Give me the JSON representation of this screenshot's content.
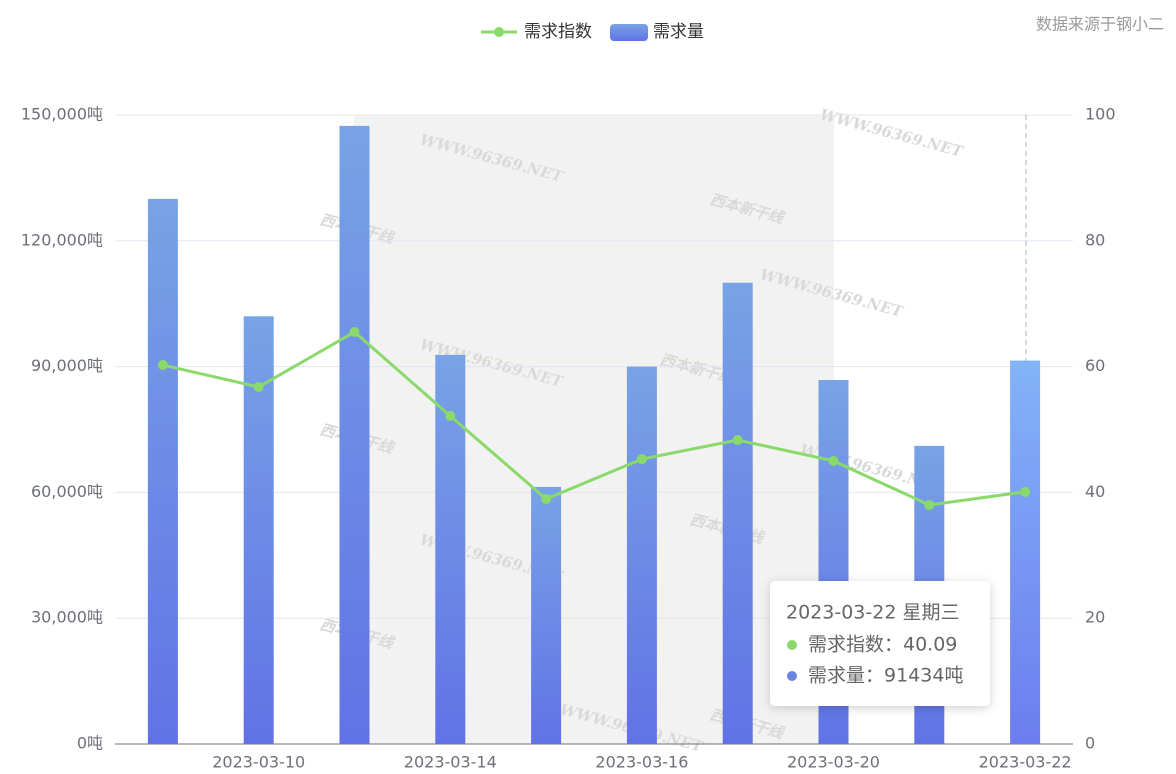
{
  "chart_data": {
    "type": "bar_line",
    "source": "数据来源于钢小二",
    "categories": [
      null,
      "2023-03-10",
      null,
      "2023-03-14",
      null,
      "2023-03-16",
      null,
      "2023-03-20",
      null,
      "2023-03-22"
    ],
    "series": [
      {
        "name": "需求指数",
        "type": "line",
        "axis": "y2",
        "color": "#8ad96b",
        "values": [
          60.25,
          56.76,
          65.5,
          52.15,
          38.95,
          45.3,
          48.33,
          45.0,
          38.0,
          40.09
        ]
      },
      {
        "name": "需求量",
        "type": "bar",
        "color": "#6a84e6",
        "values": [
          130000,
          102000,
          147400,
          92800,
          61300,
          90000,
          110000,
          86800,
          71100,
          91434
        ]
      }
    ],
    "ylim": [
      0,
      150000
    ],
    "yticks": [
      {
        "value": 0,
        "label": "0吨"
      },
      {
        "value": 30000,
        "label": "30,000吨"
      },
      {
        "value": 60000,
        "label": "60,000吨"
      },
      {
        "value": 90000,
        "label": "90,000吨"
      },
      {
        "value": 120000,
        "label": "120,000吨"
      },
      {
        "value": 150000,
        "label": "150,000吨"
      }
    ],
    "y2lim": [
      0,
      100
    ],
    "y2ticks": [
      0,
      20,
      40,
      60,
      80,
      100
    ],
    "grid": true,
    "tooltip": {
      "title": "2023-03-22 星期三",
      "lines": [
        "需求指数：40.09",
        "需求量：91434吨"
      ]
    },
    "watermark": [
      "WWW.96369.NET",
      "西本新干线"
    ]
  }
}
